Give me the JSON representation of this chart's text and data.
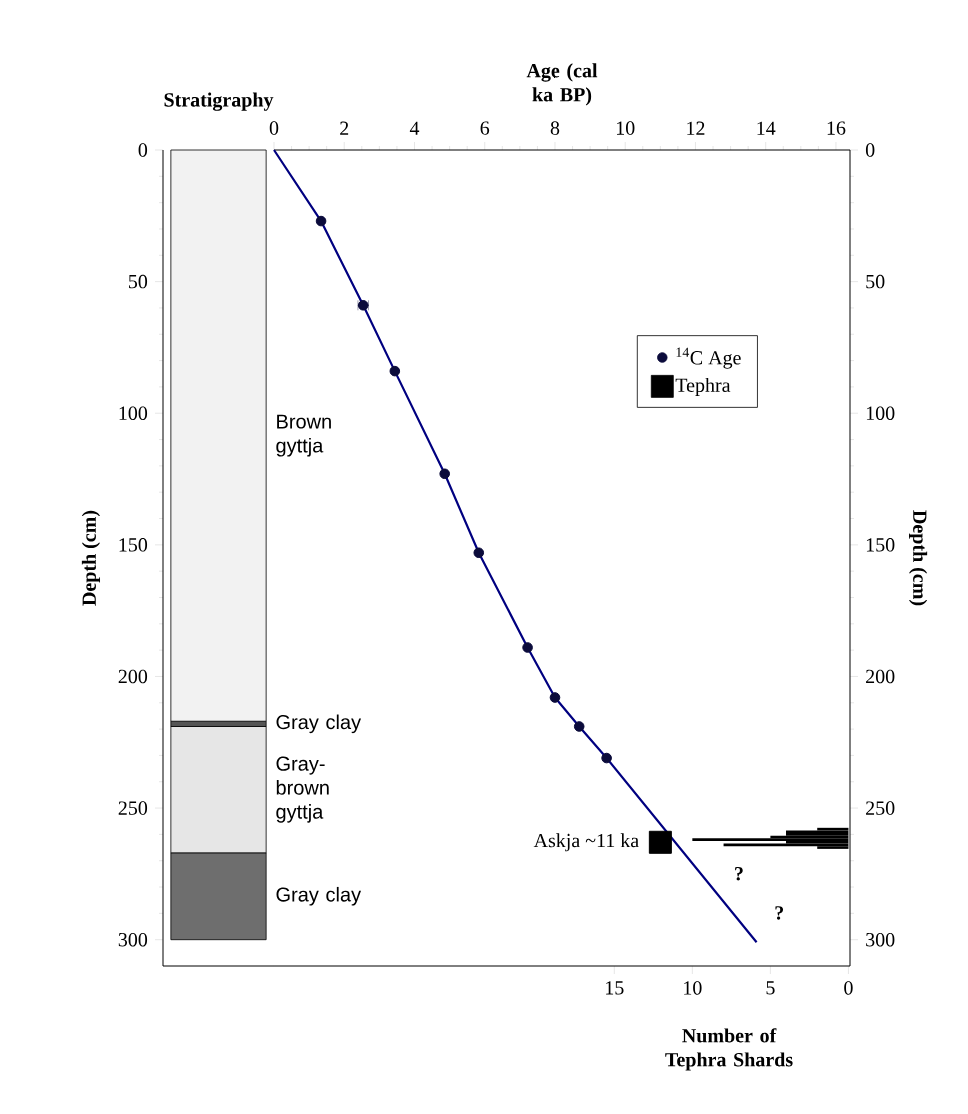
{
  "chart_data": [
    {
      "type": "bar",
      "stacked": true,
      "title": "Stratigraphy",
      "ylabel": "Depth (cm)",
      "categories": [
        null
      ],
      "series": [
        {
          "name": "Brown gyttja",
          "color": "#f2f2f2",
          "values": [
            217
          ]
        },
        {
          "name": "Gray clay",
          "color": "#555555",
          "values": [
            2
          ]
        },
        {
          "name": "Gray-brown gyttja",
          "color": "#e6e6e6",
          "values": [
            48
          ]
        },
        {
          "name": "Gray clay",
          "color": "#6e6e6e",
          "values": [
            33
          ]
        }
      ],
      "ylim": [
        310,
        0
      ],
      "yticks": [
        0,
        50,
        100,
        150,
        200,
        250,
        300
      ],
      "tick_labels": "y"
    },
    {
      "type": "scatter",
      "xlabel": "Age (cal ka BP)",
      "ylabel": "Depth (cm)",
      "xlim": [
        0,
        16.4
      ],
      "xticks": [
        0,
        2,
        4,
        6,
        8,
        10,
        12,
        14,
        16
      ],
      "ylim": [
        310,
        0
      ],
      "yticks": [
        0,
        50,
        100,
        150,
        200,
        250,
        300
      ],
      "legend": "top right",
      "series": [
        {
          "name": "$^{14}$C Age",
          "type": "scatter",
          "marker": "circle",
          "color": "#0b0b3b",
          "x": [
            1.34,
            2.54,
            3.44,
            4.86,
            5.83,
            7.22,
            8.0,
            8.69,
            9.47
          ],
          "values": [
            27,
            59,
            84,
            123,
            153,
            189,
            208,
            219,
            231
          ],
          "xerrors": [
            null,
            0.15,
            null,
            null,
            null,
            null,
            null,
            null,
            null
          ]
        },
        {
          "type": "line",
          "color": "#000080",
          "x": [
            0,
            1.34,
            2.54,
            3.44,
            4.86,
            5.83,
            7.22,
            8.0,
            8.69,
            9.47,
            13.74
          ],
          "values": [
            0,
            27,
            59,
            84,
            123,
            153,
            189,
            208,
            219,
            231,
            301
          ]
        },
        {
          "name": "Tephra",
          "type": "scatter",
          "marker": "square",
          "color": "#000000",
          "x": [
            11.0
          ],
          "values": [
            263
          ]
        }
      ],
      "annotations": [
        {
          "text": "Askja ~11 ka",
          "x": 11.0,
          "y": 263
        },
        "?",
        "?"
      ]
    },
    {
      "type": "histogram",
      "orientation": "horizontal",
      "xlabel": "Number of Tephra Shards",
      "bins": [
        257.5,
        258.5,
        259.5,
        260.5,
        261.5,
        262.5,
        263.5,
        264.5,
        265.5
      ],
      "values": [
        2,
        4,
        4,
        5,
        10,
        4,
        8,
        2
      ],
      "color": "#000000",
      "xlim": [
        36.8,
        -0.1
      ],
      "xticks": [
        15,
        10,
        5,
        0
      ],
      "ylim": [
        310,
        0
      ],
      "tick_labels": "x"
    }
  ]
}
